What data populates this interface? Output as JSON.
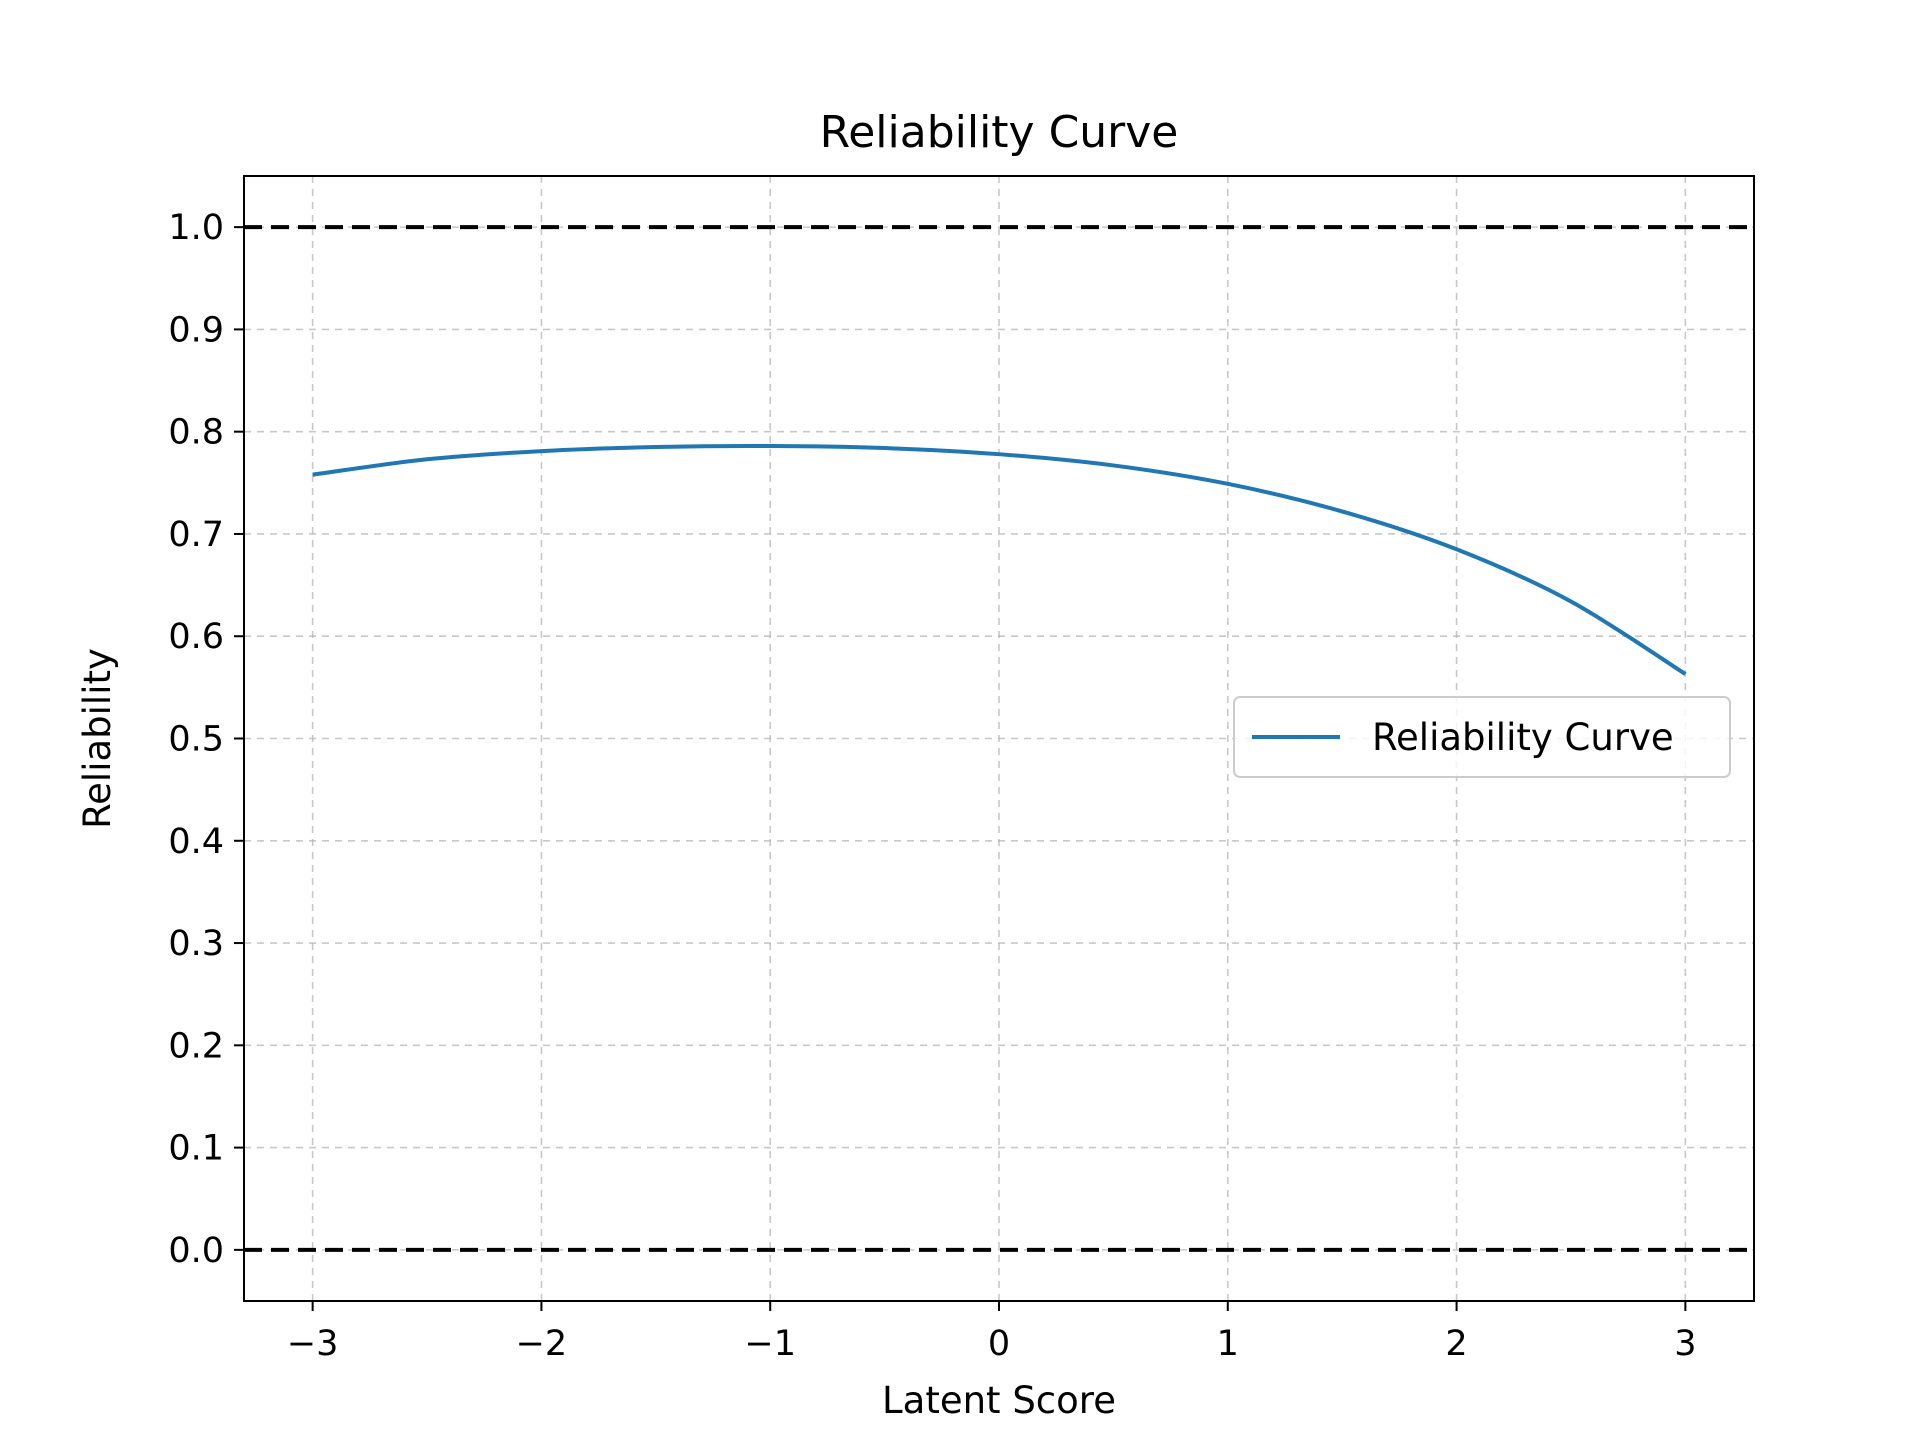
{
  "chart_data": {
    "type": "line",
    "title": "Reliability Curve",
    "xlabel": "Latent Score",
    "ylabel": "Reliability",
    "xlim": [
      -3.3,
      3.3
    ],
    "ylim": [
      -0.05,
      1.05
    ],
    "xticks": [
      -3,
      -2,
      -1,
      0,
      1,
      2,
      3
    ],
    "xtick_labels": [
      "−3",
      "−2",
      "−1",
      "0",
      "1",
      "2",
      "3"
    ],
    "yticks": [
      0.0,
      0.1,
      0.2,
      0.3,
      0.4,
      0.5,
      0.6,
      0.7,
      0.8,
      0.9,
      1.0
    ],
    "ytick_labels": [
      "0.0",
      "0.1",
      "0.2",
      "0.3",
      "0.4",
      "0.5",
      "0.6",
      "0.7",
      "0.8",
      "0.9",
      "1.0"
    ],
    "grid": true,
    "legend_position": "center-right",
    "reference_lines": [
      {
        "orientation": "horizontal",
        "y": 1.0,
        "style": "dashed",
        "color": "#000000"
      },
      {
        "orientation": "horizontal",
        "y": 0.0,
        "style": "dashed",
        "color": "#000000"
      }
    ],
    "series": [
      {
        "name": "Reliability Curve",
        "color": "#1f77b4",
        "x": [
          -3.0,
          -2.5,
          -2.0,
          -1.5,
          -1.0,
          -0.5,
          0.0,
          0.5,
          1.0,
          1.5,
          2.0,
          2.5,
          3.0
        ],
        "y": [
          0.758,
          0.773,
          0.781,
          0.785,
          0.786,
          0.784,
          0.778,
          0.767,
          0.749,
          0.722,
          0.685,
          0.634,
          0.563
        ]
      }
    ]
  }
}
